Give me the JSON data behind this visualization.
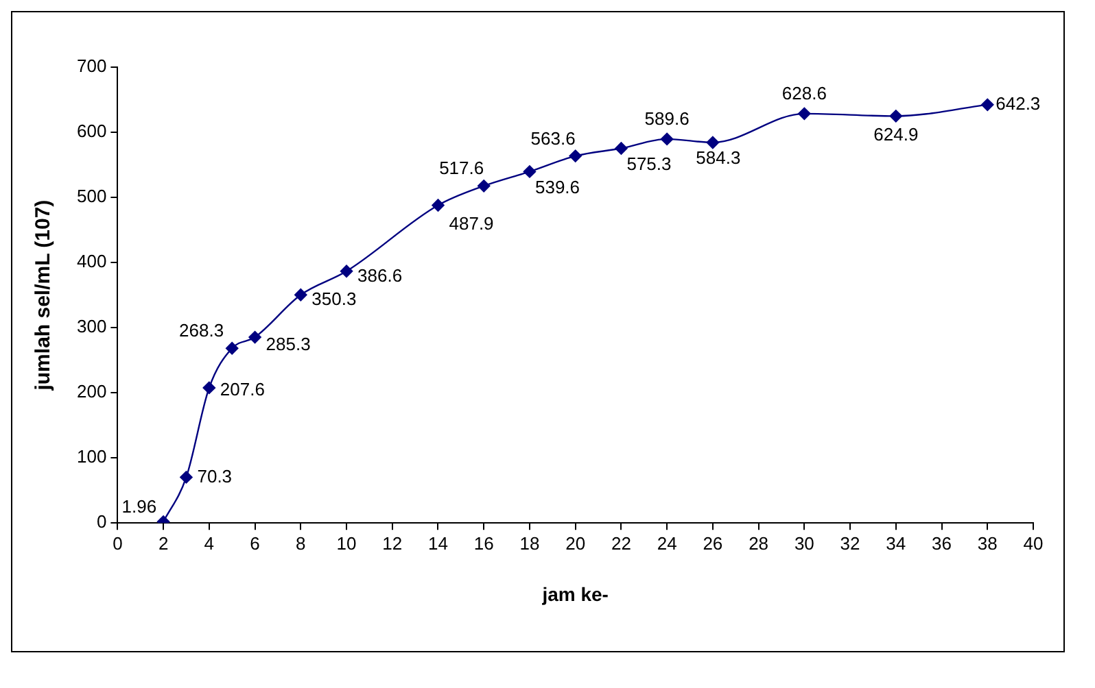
{
  "chart_data": {
    "type": "line",
    "xlabel": "jam ke-",
    "ylabel": "jumlah sel/mL (107)",
    "x": [
      2,
      3,
      4,
      5,
      6,
      8,
      10,
      14,
      16,
      18,
      20,
      22,
      24,
      26,
      30,
      34,
      38
    ],
    "series": [
      {
        "color": "#000080",
        "values": [
          1.96,
          70.3,
          207.6,
          268.3,
          285.3,
          350.3,
          386.6,
          487.9,
          517.6,
          539.6,
          563.6,
          575.3,
          589.6,
          584.3,
          628.6,
          624.9,
          642.3
        ]
      }
    ],
    "xlim": [
      0,
      40
    ],
    "xticks": [
      0,
      2,
      4,
      6,
      8,
      10,
      12,
      14,
      16,
      18,
      20,
      22,
      24,
      26,
      28,
      30,
      32,
      34,
      36,
      38,
      40
    ],
    "ylim": [
      0,
      700
    ],
    "yticks": [
      0,
      100,
      200,
      300,
      400,
      500,
      600,
      700
    ],
    "grid": false,
    "legend": false,
    "marker": "diamond",
    "line_style": "solid",
    "data_labels": true
  }
}
